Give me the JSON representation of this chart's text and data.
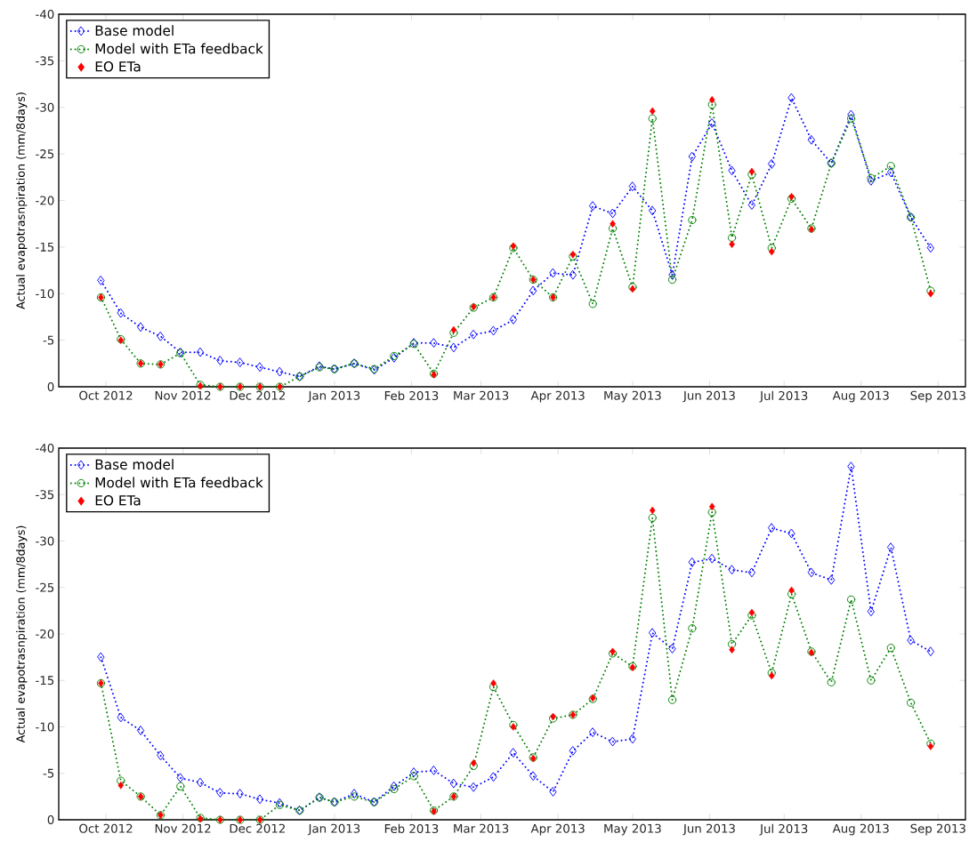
{
  "chart_data": [
    {
      "type": "line",
      "ylabel": "Actual evapotrasnpiration (mm/8days)",
      "x": [
        "2012-09-29",
        "2012-10-07",
        "2012-10-15",
        "2012-10-23",
        "2012-10-31",
        "2012-11-08",
        "2012-11-16",
        "2012-11-24",
        "2012-12-02",
        "2012-12-10",
        "2012-12-18",
        "2012-12-26",
        "2013-01-01",
        "2013-01-09",
        "2013-01-17",
        "2013-01-25",
        "2013-02-02",
        "2013-02-10",
        "2013-02-18",
        "2013-02-26",
        "2013-03-06",
        "2013-03-14",
        "2013-03-22",
        "2013-03-30",
        "2013-04-07",
        "2013-04-15",
        "2013-04-23",
        "2013-05-01",
        "2013-05-09",
        "2013-05-17",
        "2013-05-25",
        "2013-06-02",
        "2013-06-10",
        "2013-06-18",
        "2013-06-26",
        "2013-07-04",
        "2013-07-12",
        "2013-07-20",
        "2013-07-28",
        "2013-08-05",
        "2013-08-13",
        "2013-08-21",
        "2013-08-29"
      ],
      "xlim": [
        "2012-09-12",
        "2013-09-12"
      ],
      "ylim": [
        0,
        -40
      ],
      "xticks": [
        {
          "value": "2012-10-01",
          "label": "Oct 2012"
        },
        {
          "value": "2012-11-01",
          "label": "Nov 2012"
        },
        {
          "value": "2012-12-01",
          "label": "Dec 2012"
        },
        {
          "value": "2013-01-01",
          "label": "Jan 2013"
        },
        {
          "value": "2013-02-01",
          "label": "Feb 2013"
        },
        {
          "value": "2013-03-01",
          "label": "Mar 2013"
        },
        {
          "value": "2013-04-01",
          "label": "Apr 2013"
        },
        {
          "value": "2013-05-01",
          "label": "May 2013"
        },
        {
          "value": "2013-06-01",
          "label": "Jun 2013"
        },
        {
          "value": "2013-07-01",
          "label": "Jul 2013"
        },
        {
          "value": "2013-08-01",
          "label": "Aug 2013"
        },
        {
          "value": "2013-09-01",
          "label": "Sep 2013"
        }
      ],
      "yticks": [
        -40,
        -35,
        -30,
        -25,
        -20,
        -15,
        -10,
        -5,
        0
      ],
      "legend": "top left",
      "series": [
        {
          "name": "Base model",
          "color": "#0000ff",
          "marker": "diamond",
          "line_style": "dotted",
          "values": [
            -11.4,
            -7.9,
            -6.4,
            -5.4,
            -3.7,
            -3.7,
            -2.8,
            -2.6,
            -2.1,
            -1.6,
            -1.1,
            -2.2,
            -1.9,
            -2.5,
            -1.8,
            -3.1,
            -4.7,
            -4.7,
            -4.2,
            -5.6,
            -6.0,
            -7.2,
            -10.3,
            -12.2,
            -12.0,
            -19.4,
            -18.6,
            -21.5,
            -18.9,
            -12.0,
            -24.7,
            -28.3,
            -23.2,
            -19.5,
            -23.9,
            -31.0,
            -26.5,
            -24.0,
            -29.2,
            -22.1,
            -23.0,
            -18.2,
            -14.9
          ]
        },
        {
          "name": "Model with ETa feedback",
          "color": "#008000",
          "marker": "circle",
          "line_style": "dotted",
          "values": [
            -9.6,
            -5.1,
            -2.5,
            -2.4,
            -3.6,
            -0.2,
            0,
            0,
            0,
            0,
            -1.1,
            -2.1,
            -1.9,
            -2.5,
            -1.9,
            -3.3,
            -4.6,
            -1.4,
            -5.8,
            -8.5,
            -9.6,
            -14.9,
            -11.5,
            -9.6,
            -14.0,
            -8.9,
            -17.0,
            -10.7,
            -28.8,
            -11.5,
            -17.9,
            -30.3,
            -16.0,
            -22.8,
            -14.9,
            -20.2,
            -17.0,
            -24.0,
            -28.8,
            -22.4,
            -23.7,
            -18.2,
            -10.3
          ]
        },
        {
          "name": "EO ETa",
          "type": "scatter",
          "color": "#ff0000",
          "marker": "diamond",
          "values": [
            -9.6,
            -5.0,
            -2.5,
            -2.4,
            null,
            -0.1,
            0,
            0,
            0,
            0,
            null,
            null,
            null,
            null,
            null,
            null,
            null,
            -1.3,
            -6.1,
            -8.6,
            -9.6,
            -15.1,
            -11.5,
            -9.6,
            -14.2,
            null,
            -17.5,
            -10.5,
            -29.6,
            null,
            null,
            -30.8,
            -15.3,
            -23.1,
            -14.5,
            -20.4,
            -16.9,
            null,
            null,
            null,
            null,
            null,
            -10.0
          ]
        }
      ]
    },
    {
      "type": "line",
      "ylabel": "Actual evapotrasnpiration (mm/8days)",
      "x": [
        "2012-09-29",
        "2012-10-07",
        "2012-10-15",
        "2012-10-23",
        "2012-10-31",
        "2012-11-08",
        "2012-11-16",
        "2012-11-24",
        "2012-12-02",
        "2012-12-10",
        "2012-12-18",
        "2012-12-26",
        "2013-01-01",
        "2013-01-09",
        "2013-01-17",
        "2013-01-25",
        "2013-02-02",
        "2013-02-10",
        "2013-02-18",
        "2013-02-26",
        "2013-03-06",
        "2013-03-14",
        "2013-03-22",
        "2013-03-30",
        "2013-04-07",
        "2013-04-15",
        "2013-04-23",
        "2013-05-01",
        "2013-05-09",
        "2013-05-17",
        "2013-05-25",
        "2013-06-02",
        "2013-06-10",
        "2013-06-18",
        "2013-06-26",
        "2013-07-04",
        "2013-07-12",
        "2013-07-20",
        "2013-07-28",
        "2013-08-05",
        "2013-08-13",
        "2013-08-21",
        "2013-08-29"
      ],
      "xlim": [
        "2012-09-12",
        "2013-09-12"
      ],
      "ylim": [
        0,
        -40
      ],
      "xticks": [
        {
          "value": "2012-10-01",
          "label": "Oct 2012"
        },
        {
          "value": "2012-11-01",
          "label": "Nov 2012"
        },
        {
          "value": "2012-12-01",
          "label": "Dec 2012"
        },
        {
          "value": "2013-01-01",
          "label": "Jan 2013"
        },
        {
          "value": "2013-02-01",
          "label": "Feb 2013"
        },
        {
          "value": "2013-03-01",
          "label": "Mar 2013"
        },
        {
          "value": "2013-04-01",
          "label": "Apr 2013"
        },
        {
          "value": "2013-05-01",
          "label": "May 2013"
        },
        {
          "value": "2013-06-01",
          "label": "Jun 2013"
        },
        {
          "value": "2013-07-01",
          "label": "Jul 2013"
        },
        {
          "value": "2013-08-01",
          "label": "Aug 2013"
        },
        {
          "value": "2013-09-01",
          "label": "Sep 2013"
        }
      ],
      "yticks": [
        -40,
        -35,
        -30,
        -25,
        -20,
        -15,
        -10,
        -5,
        0
      ],
      "legend": "top left",
      "series": [
        {
          "name": "Base model",
          "color": "#0000ff",
          "marker": "diamond",
          "line_style": "dotted",
          "values": [
            -17.5,
            -11.0,
            -9.6,
            -6.9,
            -4.5,
            -4.0,
            -2.9,
            -2.8,
            -2.2,
            -1.8,
            -1.0,
            -2.4,
            -1.9,
            -2.8,
            -1.9,
            -3.6,
            -5.1,
            -5.3,
            -3.9,
            -3.5,
            -4.6,
            -7.2,
            -4.7,
            -3.0,
            -7.4,
            -9.4,
            -8.4,
            -8.7,
            -20.1,
            -18.4,
            -27.7,
            -28.1,
            -26.9,
            -26.6,
            -31.4,
            -30.8,
            -26.6,
            -25.8,
            -38.0,
            -22.4,
            -29.3,
            -19.3,
            -18.1
          ]
        },
        {
          "name": "Model with ETa feedback",
          "color": "#008000",
          "marker": "circle",
          "line_style": "dotted",
          "values": [
            -14.7,
            -4.2,
            -2.5,
            -0.5,
            -3.6,
            -0.2,
            0,
            0,
            0,
            -1.6,
            -1.0,
            -2.4,
            -1.9,
            -2.5,
            -1.9,
            -3.3,
            -4.7,
            -1.0,
            -2.5,
            -5.8,
            -14.3,
            -10.2,
            -6.7,
            -10.9,
            -11.3,
            -13.0,
            -17.9,
            -16.5,
            -32.5,
            -12.9,
            -20.6,
            -33.1,
            -18.9,
            -22.0,
            -15.8,
            -24.3,
            -18.1,
            -14.8,
            -23.7,
            -15.0,
            -18.5,
            -12.6,
            -8.2
          ]
        },
        {
          "name": "EO ETa",
          "type": "scatter",
          "color": "#ff0000",
          "marker": "diamond",
          "values": [
            -14.7,
            -3.7,
            -2.5,
            -0.5,
            null,
            -0.1,
            0,
            0,
            0,
            null,
            null,
            null,
            null,
            null,
            null,
            null,
            null,
            -0.9,
            -2.5,
            -6.1,
            -14.7,
            -10.0,
            -6.6,
            -11.1,
            -11.3,
            -13.1,
            -18.1,
            -16.4,
            -33.3,
            null,
            null,
            -33.7,
            -18.3,
            -22.3,
            -15.5,
            -24.7,
            -18.0,
            null,
            null,
            null,
            null,
            null,
            -7.9
          ]
        }
      ]
    }
  ]
}
